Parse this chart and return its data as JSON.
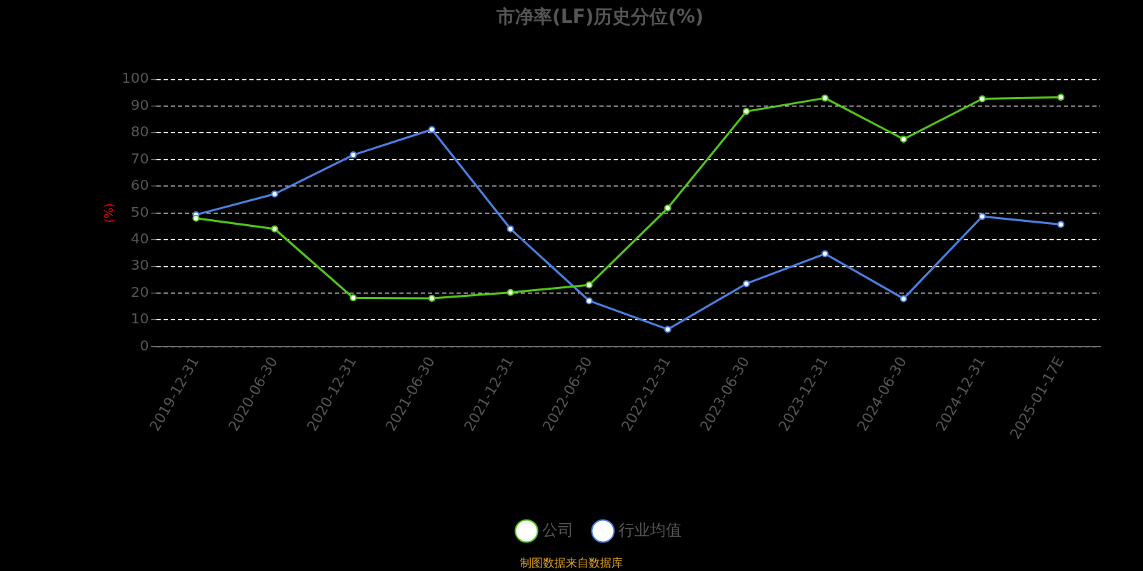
{
  "chart_data": {
    "type": "line",
    "title": "市净率(LF)历史分位(%)",
    "ylabel": "(%)",
    "categories": [
      "2019-12-31",
      "2020-06-30",
      "2020-12-31",
      "2021-06-30",
      "2021-12-31",
      "2022-06-30",
      "2022-12-31",
      "2023-06-30",
      "2023-12-31",
      "2024-06-30",
      "2024-12-31",
      "2025-01-17E"
    ],
    "series": [
      {
        "name": "公司",
        "color": "#52c41a",
        "values": [
          48,
          44,
          18.2,
          18,
          20.2,
          23,
          51.8,
          88,
          93,
          77.6,
          92.7,
          93.3
        ]
      },
      {
        "name": "行业均值",
        "color": "#4a7fe0",
        "values": [
          49.3,
          57.1,
          71.7,
          81.2,
          44,
          17.1,
          6.4,
          23.5,
          34.7,
          17.9,
          48.7,
          45.7
        ]
      }
    ],
    "ylim": [
      0,
      100
    ],
    "yticks": [
      0,
      10,
      20,
      30,
      40,
      50,
      60,
      70,
      80,
      90,
      100
    ],
    "grid": "y",
    "legend": "bottom",
    "marker": "circle",
    "line_style": "solid",
    "annotations": [
      "制图数据来自数据库"
    ]
  }
}
